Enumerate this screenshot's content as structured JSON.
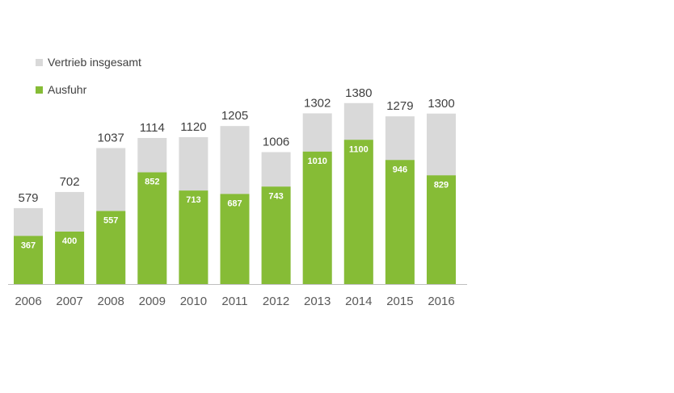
{
  "chart_data": {
    "type": "bar",
    "stacked": false,
    "overlapped": true,
    "categories": [
      "2006",
      "2007",
      "2008",
      "2009",
      "2010",
      "2011",
      "2012",
      "2013",
      "2014",
      "2015",
      "2016"
    ],
    "series": [
      {
        "name": "Vertrieb insgesamt",
        "color": "#d9d9d9",
        "values": [
          579,
          702,
          1037,
          1114,
          1120,
          1205,
          1006,
          1302,
          1380,
          1279,
          1300
        ]
      },
      {
        "name": "Ausfuhr",
        "color": "#86bc36",
        "values": [
          367,
          400,
          557,
          852,
          713,
          687,
          743,
          1010,
          1100,
          946,
          829
        ]
      }
    ],
    "ylim": [
      0,
      1450
    ],
    "grid": false,
    "legend_position": "top-left",
    "title": "",
    "xlabel": "",
    "ylabel": ""
  }
}
